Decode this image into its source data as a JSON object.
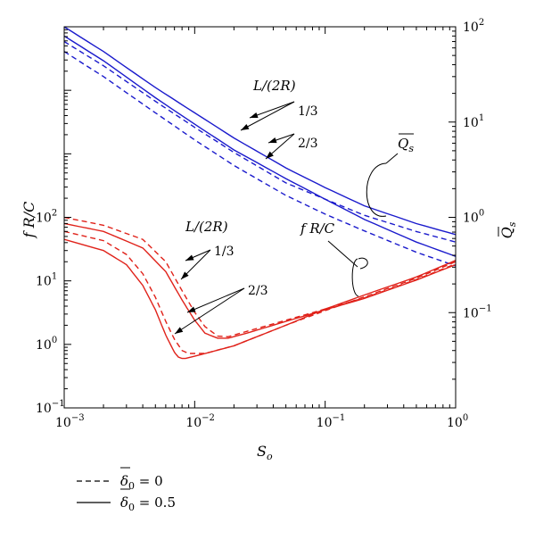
{
  "chart_data": {
    "type": "line",
    "x_axis": {
      "label": "S",
      "label_sub": "o",
      "scale": "log",
      "range": [
        0.001,
        1
      ],
      "ticks": [
        {
          "v": 0.001,
          "base": "10",
          "exp": "−3"
        },
        {
          "v": 0.01,
          "base": "10",
          "exp": "−2"
        },
        {
          "v": 0.1,
          "base": "10",
          "exp": "−1"
        },
        {
          "v": 1,
          "base": "10",
          "exp": "0"
        }
      ]
    },
    "y_left": {
      "label": "f R/C",
      "scale": "log",
      "range": [
        0.1,
        100000
      ],
      "ticks": [
        {
          "v": 0.1,
          "base": "10",
          "exp": "−1"
        },
        {
          "v": 1,
          "base": "10",
          "exp": "0"
        },
        {
          "v": 10,
          "base": "10",
          "exp": "1"
        },
        {
          "v": 100,
          "base": "10",
          "exp": "2"
        }
      ]
    },
    "y_right": {
      "label": "Q",
      "label_sub": "s",
      "scale": "log",
      "range": [
        0.01,
        100
      ],
      "ticks": [
        {
          "v": 0.1,
          "base": "10",
          "exp": "−1"
        },
        {
          "v": 1,
          "base": "10",
          "exp": "0"
        },
        {
          "v": 10,
          "base": "10",
          "exp": "1"
        },
        {
          "v": 100,
          "base": "10",
          "exp": "2"
        }
      ]
    },
    "series": [
      {
        "group": "Qs",
        "axis": "right",
        "L_2R": "1/3",
        "delta0": "0.5",
        "color": "#1a1acc",
        "dash": false,
        "x": [
          0.001,
          0.002,
          0.005,
          0.01,
          0.02,
          0.05,
          0.1,
          0.2,
          0.5,
          1
        ],
        "y": [
          100,
          55,
          23,
          12.5,
          6.8,
          3.3,
          2.05,
          1.32,
          0.86,
          0.66
        ]
      },
      {
        "group": "Qs",
        "axis": "right",
        "L_2R": "1/3",
        "delta0": "0",
        "color": "#1a1acc",
        "dash": true,
        "x": [
          0.001,
          0.002,
          0.005,
          0.01,
          0.02,
          0.05,
          0.1,
          0.2,
          0.5,
          1
        ],
        "y": [
          70,
          39,
          16.5,
          8.8,
          4.8,
          2.3,
          1.55,
          1.05,
          0.71,
          0.55
        ]
      },
      {
        "group": "Qs",
        "axis": "right",
        "L_2R": "2/3",
        "delta0": "0.5",
        "color": "#1a1acc",
        "dash": false,
        "x": [
          0.001,
          0.002,
          0.005,
          0.01,
          0.02,
          0.05,
          0.1,
          0.2,
          0.5,
          1
        ],
        "y": [
          80,
          44,
          18,
          9.5,
          5.1,
          2.55,
          1.55,
          0.95,
          0.55,
          0.39
        ]
      },
      {
        "group": "Qs",
        "axis": "right",
        "L_2R": "2/3",
        "delta0": "0",
        "color": "#1a1acc",
        "dash": true,
        "x": [
          0.001,
          0.002,
          0.005,
          0.01,
          0.02,
          0.05,
          0.1,
          0.2,
          0.5,
          1
        ],
        "y": [
          55,
          30,
          12.5,
          6.5,
          3.5,
          1.7,
          1.08,
          0.72,
          0.43,
          0.31
        ]
      },
      {
        "group": "fRC",
        "axis": "left",
        "L_2R": "1/3",
        "delta0": "0",
        "color": "#e0221a",
        "dash": true,
        "x": [
          0.001,
          0.002,
          0.004,
          0.006,
          0.008,
          0.01,
          0.012,
          0.015,
          0.018,
          0.025,
          0.05,
          0.1,
          0.2,
          0.5,
          1
        ],
        "y": [
          100,
          75,
          45,
          20,
          7,
          3.2,
          1.9,
          1.35,
          1.32,
          1.6,
          2.4,
          3.6,
          5.4,
          10.5,
          18.5
        ]
      },
      {
        "group": "fRC",
        "axis": "left",
        "L_2R": "1/3",
        "delta0": "0.5",
        "color": "#e0221a",
        "dash": false,
        "x": [
          0.001,
          0.002,
          0.004,
          0.006,
          0.008,
          0.01,
          0.012,
          0.015,
          0.018,
          0.025,
          0.05,
          0.1,
          0.2,
          0.5,
          1
        ],
        "y": [
          80,
          60,
          33,
          14,
          5,
          2.4,
          1.5,
          1.25,
          1.25,
          1.5,
          2.3,
          3.5,
          5.3,
          10.3,
          18
        ]
      },
      {
        "group": "fRC",
        "axis": "left",
        "L_2R": "2/3",
        "delta0": "0",
        "color": "#e0221a",
        "dash": true,
        "x": [
          0.001,
          0.002,
          0.003,
          0.004,
          0.005,
          0.006,
          0.007,
          0.008,
          0.009,
          0.012,
          0.02,
          0.05,
          0.1,
          0.2,
          0.5,
          1
        ],
        "y": [
          60,
          43,
          26,
          13,
          5.5,
          2.3,
          1.2,
          0.8,
          0.72,
          0.72,
          0.95,
          2.0,
          3.4,
          5.6,
          11,
          20
        ]
      },
      {
        "group": "fRC",
        "axis": "left",
        "L_2R": "2/3",
        "delta0": "0.5",
        "color": "#e0221a",
        "dash": false,
        "x": [
          0.001,
          0.002,
          0.003,
          0.004,
          0.005,
          0.006,
          0.007,
          0.0075,
          0.008,
          0.0085,
          0.01,
          0.02,
          0.05,
          0.1,
          0.2,
          0.5,
          1
        ],
        "y": [
          45,
          30,
          18,
          8.5,
          3.5,
          1.4,
          0.75,
          0.63,
          0.6,
          0.6,
          0.65,
          0.95,
          2.0,
          3.6,
          6.0,
          11.5,
          21
        ]
      }
    ],
    "annotations": {
      "blue_group": {
        "title": "L/(2R)",
        "a": "1/3",
        "b": "2/3",
        "brace": "Q",
        "brace_sub": "s"
      },
      "red_group": {
        "title": "L/(2R)",
        "a": "1/3",
        "b": "2/3",
        "brace": "f R/C"
      }
    },
    "legend": [
      {
        "dash": true,
        "symbol": "δ",
        "sub": "0",
        "value": "= 0"
      },
      {
        "dash": false,
        "symbol": "δ",
        "sub": "0",
        "value": "= 0.5"
      }
    ],
    "legend_placement": "below-left",
    "grid": false
  }
}
